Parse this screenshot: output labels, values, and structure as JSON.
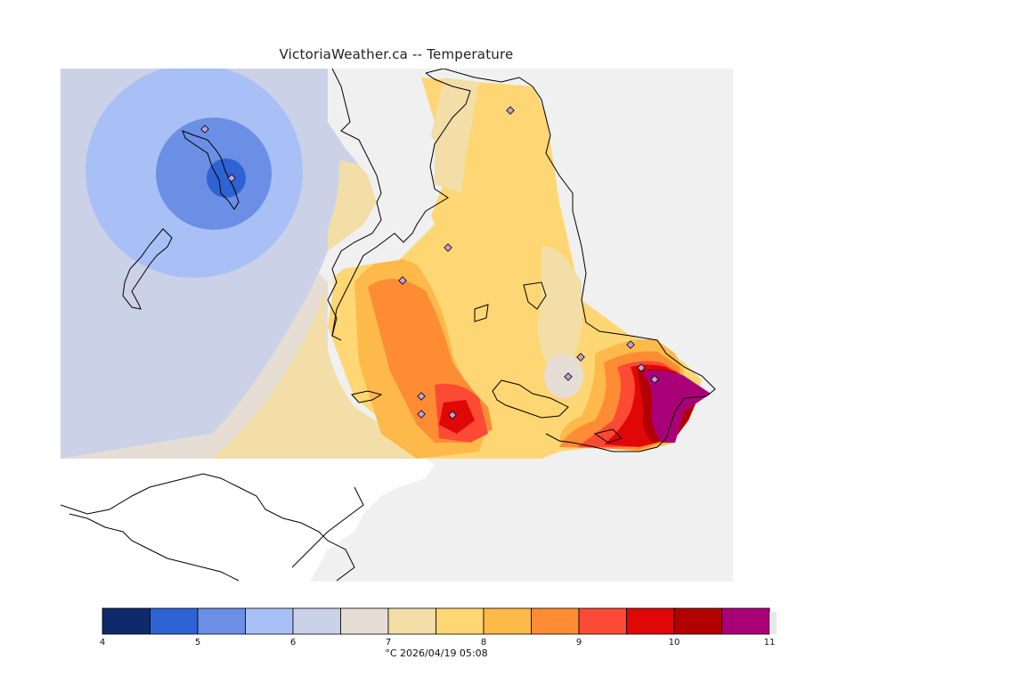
{
  "title": "VictoriaWeather.ca -- Temperature",
  "legend": {
    "caption": "°C  2026/04/19 05:08",
    "min": 4,
    "max": 11,
    "step": 0.5,
    "tick_labels": [
      "4",
      "5",
      "6",
      "7",
      "8",
      "9",
      "10",
      "11"
    ],
    "colors": [
      "#0e2a6b",
      "#2f63d4",
      "#6b8fe4",
      "#a9c0f6",
      "#cbd2e8",
      "#e6ded4",
      "#f2dea6",
      "#fed673",
      "#fdb949",
      "#fd8c34",
      "#fd4a34",
      "#e00707",
      "#b30000",
      "#aa0077"
    ]
  },
  "colors": {
    "land_outside": "#f0f0f0",
    "water_outside": "#ffffff",
    "coast": "#000000",
    "station_marker": "#c0a0d8"
  }
}
